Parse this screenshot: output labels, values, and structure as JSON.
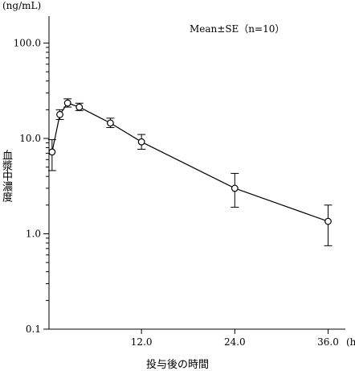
{
  "chart_data": {
    "type": "line",
    "y_unit_label": "(ng/mL)",
    "x_unit_label": "(h)",
    "ylabel": "血漿中濃度",
    "xlabel": "投与後の時間",
    "annotation": "Mean±SE（n=10）",
    "y_scale": "log",
    "ylim": [
      0.1,
      200
    ],
    "xlim": [
      0,
      38
    ],
    "y_ticks": [
      "0.1",
      "1.0",
      "10.0",
      "100.0"
    ],
    "y_tick_values": [
      0.1,
      1,
      10,
      100
    ],
    "x_ticks": [
      "12.0",
      "24.0",
      "36.0"
    ],
    "x_tick_values": [
      12,
      24,
      36
    ],
    "series": [
      {
        "x": [
          0.5,
          1.5,
          2.5,
          4.0,
          8.0,
          12.0,
          24.0,
          36.0
        ],
        "y": [
          7.2,
          17.8,
          23.5,
          21.3,
          14.5,
          9.2,
          3.0,
          1.35
        ],
        "err_low": [
          4.6,
          15.8,
          21.3,
          19.6,
          13.0,
          7.7,
          1.9,
          0.75
        ],
        "err_high": [
          9.7,
          20.0,
          26.0,
          23.4,
          16.3,
          11.0,
          4.3,
          2.0
        ]
      }
    ],
    "grid": false,
    "marker": "open-circle",
    "error_bars": true
  }
}
